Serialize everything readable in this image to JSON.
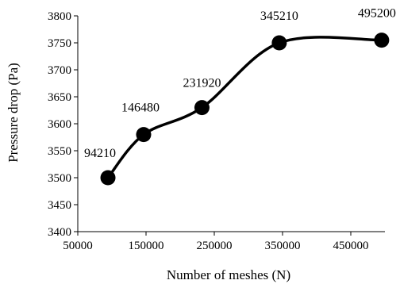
{
  "chart_data": {
    "type": "line",
    "title": "",
    "xlabel": "Number of meshes (N)",
    "ylabel": "Pressure drop (Pa)",
    "xlim": [
      50000,
      500000
    ],
    "ylim": [
      3400,
      3800
    ],
    "xticks": [
      50000,
      150000,
      250000,
      350000,
      450000
    ],
    "yticks": [
      3400,
      3450,
      3500,
      3550,
      3600,
      3650,
      3700,
      3750,
      3800
    ],
    "grid": false,
    "legend": "none",
    "line_color": "#000000",
    "marker": "filled-circle",
    "smooth": true,
    "series": [
      {
        "x": [
          94210,
          146480,
          231920,
          345210,
          495200
        ],
        "y": [
          3500,
          3580,
          3630,
          3750,
          3755
        ],
        "labels": [
          "94210",
          "146480",
          "231920",
          "345210",
          "495200"
        ]
      }
    ]
  }
}
